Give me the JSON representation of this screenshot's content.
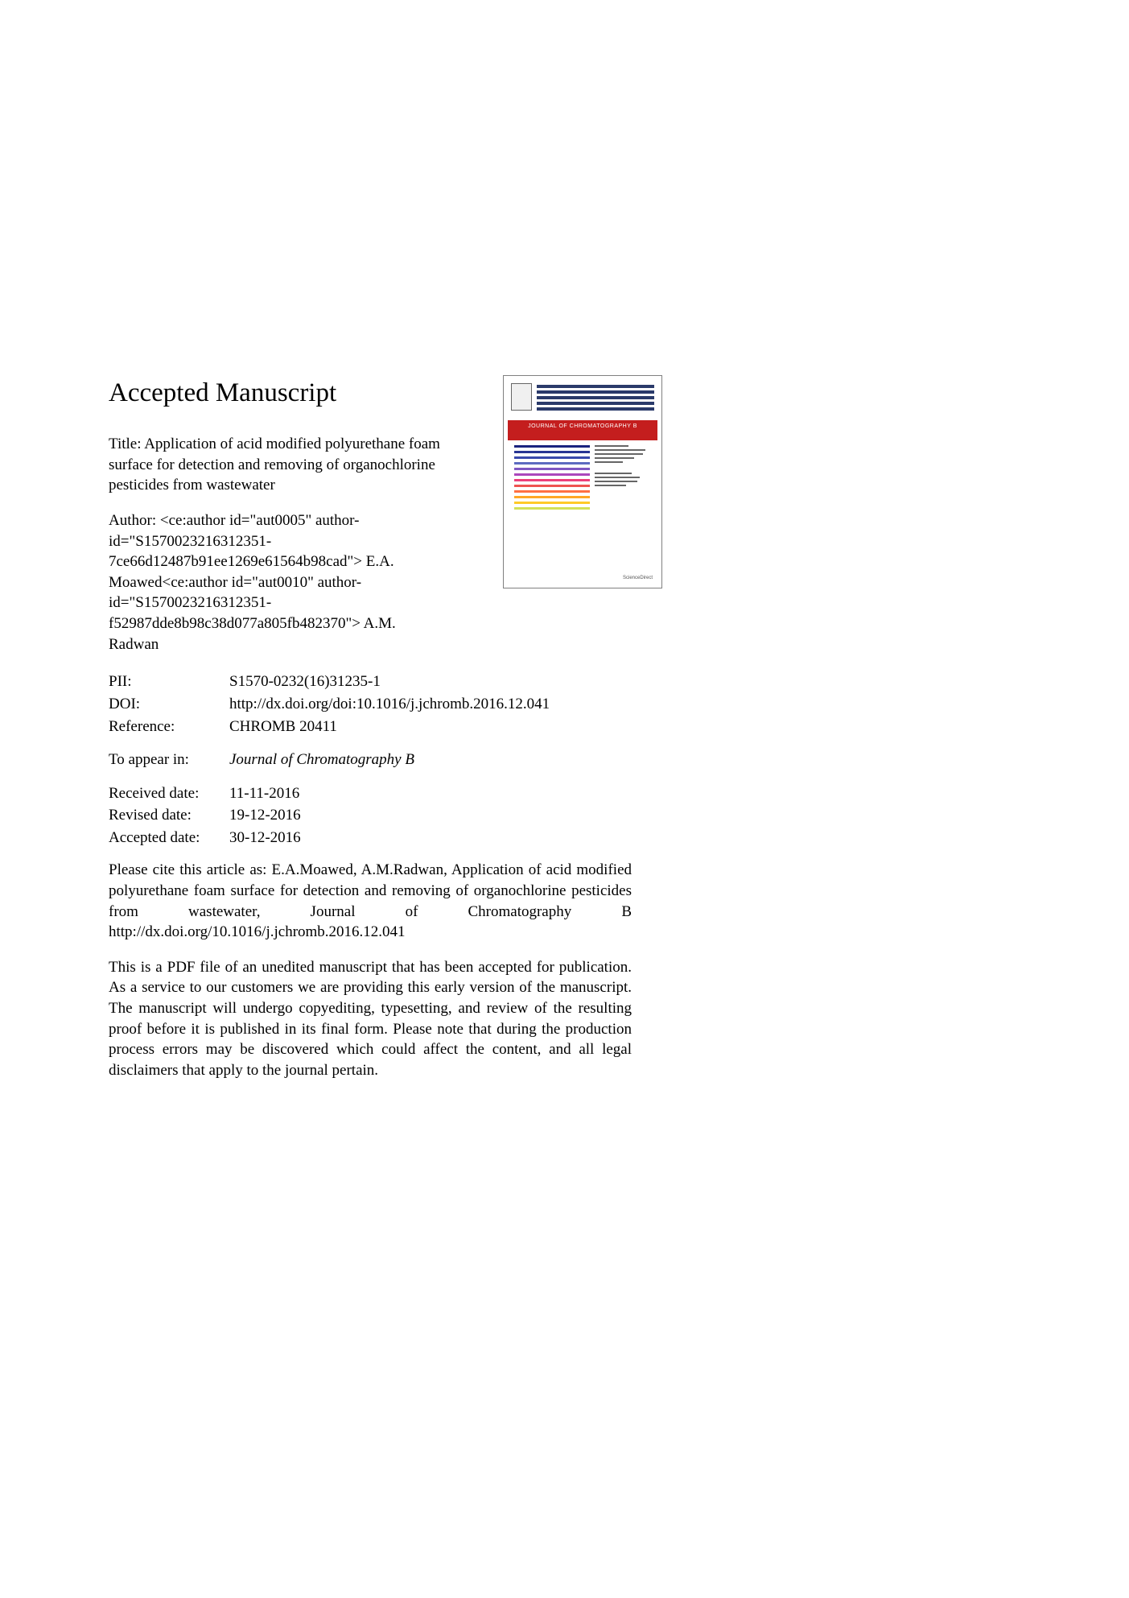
{
  "heading": "Accepted Manuscript",
  "title": "Title: Application of acid modified polyurethane foam surface for detection and removing of organochlorine pesticides from wastewater",
  "author": "Author: <ce:author id=\"aut0005\" author-id=\"S1570023216312351-7ce66d12487b91ee1269e61564b98cad\"> E.A. Moawed<ce:author id=\"aut0010\" author-id=\"S1570023216312351-f52987dde8b98c38d077a805fb482370\"> A.M. Radwan",
  "meta": {
    "pii_label": "PII:",
    "pii_value": "S1570-0232(16)31235-1",
    "doi_label": "DOI:",
    "doi_value": "http://dx.doi.org/doi:10.1016/j.jchromb.2016.12.041",
    "ref_label": "Reference:",
    "ref_value": "CHROMB 20411",
    "appear_label": "To appear in:",
    "appear_value": "Journal of Chromatography B",
    "received_label": "Received date:",
    "received_value": "11-11-2016",
    "revised_label": "Revised date:",
    "revised_value": "19-12-2016",
    "accepted_label": "Accepted date:",
    "accepted_value": "30-12-2016"
  },
  "citation": "Please cite this article as: E.A.Moawed, A.M.Radwan, Application of acid modified polyurethane foam surface for detection and removing of organochlorine pesticides from wastewater, Journal of Chromatography B http://dx.doi.org/10.1016/j.jchromb.2016.12.041",
  "disclaimer": "This is a PDF file of an unedited manuscript that has been accepted for publication. As a service to our customers we are providing this early version of the manuscript. The manuscript will undergo copyediting, typesetting, and review of the resulting proof before it is published in its final form. Please note that during the production process errors may be discovered which could affect the content, and all legal disclaimers that apply to the journal pertain.",
  "cover": {
    "journal_name": "JOURNAL OF CHROMATOGRAPHY B",
    "gradient_colors": [
      "#1a237e",
      "#283593",
      "#3949ab",
      "#5c6bc0",
      "#7e57c2",
      "#ab47bc",
      "#ec407a",
      "#ef5350",
      "#ff7043",
      "#ffa726",
      "#ffca28",
      "#d4e157"
    ],
    "banner_color": "#c41e1e",
    "top_line_color": "#2a3a6a",
    "border_color": "#808080",
    "footer": "ScienceDirect"
  }
}
